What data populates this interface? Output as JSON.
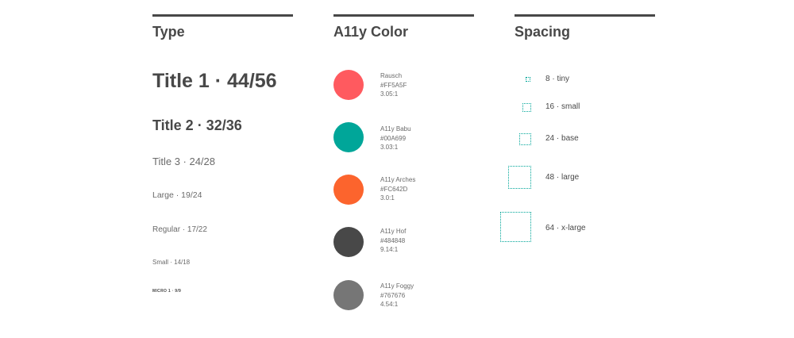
{
  "type_section": {
    "title": "Type",
    "samples": [
      "Title 1 · 44/56",
      "Title 2 · 32/36",
      "Title 3 · 24/28",
      "Large · 19/24",
      "Regular · 17/22",
      "Small · 14/18",
      "MICRO 1 · 9/9"
    ]
  },
  "color_section": {
    "title": "A11y Color",
    "swatches": [
      {
        "name": "Rausch",
        "hex": "#FF5A5F",
        "ratio": "3.05:1",
        "color": "#FF5A5F"
      },
      {
        "name": "A11y Babu",
        "hex": "#00A699",
        "ratio": "3.03:1",
        "color": "#00A699"
      },
      {
        "name": "A11y Arches",
        "hex": "#FC642D",
        "ratio": "3.0:1",
        "color": "#FC642D"
      },
      {
        "name": "A11y Hof",
        "hex": "#484848",
        "ratio": "9.14:1",
        "color": "#484848"
      },
      {
        "name": "A11y Foggy",
        "hex": "#767676",
        "ratio": "4.54:1",
        "color": "#767676"
      }
    ]
  },
  "spacing_section": {
    "title": "Spacing",
    "items": [
      {
        "label": "8 · tiny"
      },
      {
        "label": "16 · small"
      },
      {
        "label": "24 · base"
      },
      {
        "label": "48 · large"
      },
      {
        "label": "64 · x-large"
      }
    ]
  },
  "colors": {
    "text": "#484848",
    "rule": "#484848",
    "spacing_outline": "#00A699"
  }
}
